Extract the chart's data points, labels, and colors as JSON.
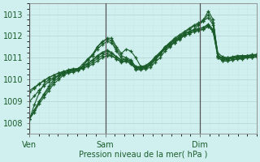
{
  "xlabel": "Pression niveau de la mer( hPa )",
  "ylim": [
    1007.5,
    1013.5
  ],
  "xlim": [
    0,
    48
  ],
  "yticks": [
    1008,
    1009,
    1010,
    1011,
    1012,
    1013
  ],
  "xtick_labels": [
    "Ven",
    "Sam",
    "Dim"
  ],
  "xtick_positions": [
    0,
    16,
    36
  ],
  "vlines": [
    0,
    16,
    36
  ],
  "bg_color": "#d0f0f0",
  "grid_major_color": "#b8d8d8",
  "grid_minor_color": "#c8e8e8",
  "line_color": "#1a5c2a",
  "marker": "+",
  "series": [
    [
      1008.2,
      1008.5,
      1008.9,
      1009.2,
      1009.5,
      1009.8,
      1010.0,
      1010.2,
      1010.3,
      1010.35,
      1010.4,
      1010.6,
      1010.9,
      1011.1,
      1011.5,
      1011.7,
      1011.9,
      1011.9,
      1011.5,
      1011.2,
      1011.4,
      1011.3,
      1011.0,
      1010.6,
      1010.5,
      1010.55,
      1010.8,
      1011.0,
      1011.3,
      1011.5,
      1011.7,
      1011.9,
      1012.1,
      1012.2,
      1012.3,
      1012.5,
      1012.7,
      1012.85,
      1012.5,
      1011.2,
      1011.05,
      1011.0,
      1011.0,
      1011.0,
      1011.0,
      1011.05,
      1011.1,
      1011.15
    ],
    [
      1008.2,
      1008.6,
      1009.0,
      1009.35,
      1009.7,
      1010.0,
      1010.2,
      1010.35,
      1010.45,
      1010.5,
      1010.5,
      1010.7,
      1010.95,
      1011.15,
      1011.5,
      1011.75,
      1011.85,
      1011.8,
      1011.4,
      1011.1,
      1011.0,
      1010.9,
      1010.55,
      1010.55,
      1010.6,
      1010.7,
      1010.95,
      1011.2,
      1011.5,
      1011.7,
      1011.9,
      1012.05,
      1012.2,
      1012.35,
      1012.5,
      1012.6,
      1012.75,
      1013.15,
      1012.75,
      1011.1,
      1011.0,
      1011.0,
      1011.05,
      1011.1,
      1011.1,
      1011.1,
      1011.15,
      1011.15
    ],
    [
      1008.2,
      1008.6,
      1009.0,
      1009.3,
      1009.6,
      1009.9,
      1010.1,
      1010.25,
      1010.35,
      1010.4,
      1010.45,
      1010.6,
      1010.9,
      1011.1,
      1011.4,
      1011.6,
      1011.75,
      1011.7,
      1011.3,
      1011.0,
      1010.9,
      1010.8,
      1010.45,
      1010.45,
      1010.5,
      1010.65,
      1010.9,
      1011.15,
      1011.45,
      1011.65,
      1011.85,
      1012.0,
      1012.15,
      1012.3,
      1012.45,
      1012.55,
      1012.7,
      1013.0,
      1012.6,
      1011.1,
      1010.95,
      1010.95,
      1011.0,
      1011.05,
      1011.1,
      1011.1,
      1011.1,
      1011.1
    ],
    [
      1009.4,
      1009.6,
      1009.8,
      1009.95,
      1010.1,
      1010.2,
      1010.3,
      1010.38,
      1010.42,
      1010.45,
      1010.5,
      1010.6,
      1010.75,
      1010.9,
      1011.1,
      1011.25,
      1011.35,
      1011.25,
      1011.05,
      1010.9,
      1010.95,
      1010.85,
      1010.6,
      1010.6,
      1010.65,
      1010.8,
      1011.05,
      1011.25,
      1011.5,
      1011.65,
      1011.8,
      1011.95,
      1012.1,
      1012.2,
      1012.3,
      1012.35,
      1012.4,
      1012.55,
      1012.3,
      1011.1,
      1010.95,
      1010.95,
      1011.0,
      1011.05,
      1011.05,
      1011.1,
      1011.1,
      1011.15
    ],
    [
      1009.5,
      1009.65,
      1009.82,
      1009.96,
      1010.1,
      1010.2,
      1010.3,
      1010.36,
      1010.42,
      1010.46,
      1010.5,
      1010.6,
      1010.72,
      1010.86,
      1011.05,
      1011.2,
      1011.3,
      1011.2,
      1011.02,
      1010.88,
      1010.92,
      1010.82,
      1010.58,
      1010.58,
      1010.62,
      1010.78,
      1011.02,
      1011.22,
      1011.48,
      1011.62,
      1011.78,
      1011.92,
      1012.08,
      1012.18,
      1012.28,
      1012.32,
      1012.38,
      1012.52,
      1012.28,
      1011.08,
      1010.93,
      1010.93,
      1010.98,
      1011.02,
      1011.02,
      1011.08,
      1011.08,
      1011.12
    ],
    [
      1009.0,
      1009.25,
      1009.52,
      1009.72,
      1009.9,
      1010.05,
      1010.18,
      1010.28,
      1010.35,
      1010.4,
      1010.44,
      1010.54,
      1010.66,
      1010.78,
      1010.96,
      1011.1,
      1011.2,
      1011.1,
      1010.94,
      1010.8,
      1010.84,
      1010.74,
      1010.5,
      1010.5,
      1010.56,
      1010.72,
      1010.96,
      1011.16,
      1011.42,
      1011.56,
      1011.72,
      1011.86,
      1012.02,
      1012.12,
      1012.22,
      1012.26,
      1012.32,
      1012.46,
      1012.22,
      1011.02,
      1010.87,
      1010.87,
      1010.92,
      1010.96,
      1010.96,
      1011.02,
      1011.02,
      1011.06
    ],
    [
      1008.2,
      1008.85,
      1009.4,
      1009.8,
      1010.0,
      1010.1,
      1010.2,
      1010.3,
      1010.38,
      1010.42,
      1010.45,
      1010.5,
      1010.6,
      1010.7,
      1010.85,
      1011.0,
      1011.1,
      1011.1,
      1010.95,
      1010.82,
      1010.86,
      1010.7,
      1010.5,
      1010.5,
      1010.55,
      1010.7,
      1010.95,
      1011.15,
      1011.4,
      1011.55,
      1011.7,
      1011.85,
      1012.0,
      1012.1,
      1012.2,
      1012.25,
      1012.3,
      1012.44,
      1012.2,
      1011.0,
      1010.85,
      1010.85,
      1010.9,
      1010.94,
      1010.95,
      1011.0,
      1011.0,
      1011.05
    ]
  ]
}
